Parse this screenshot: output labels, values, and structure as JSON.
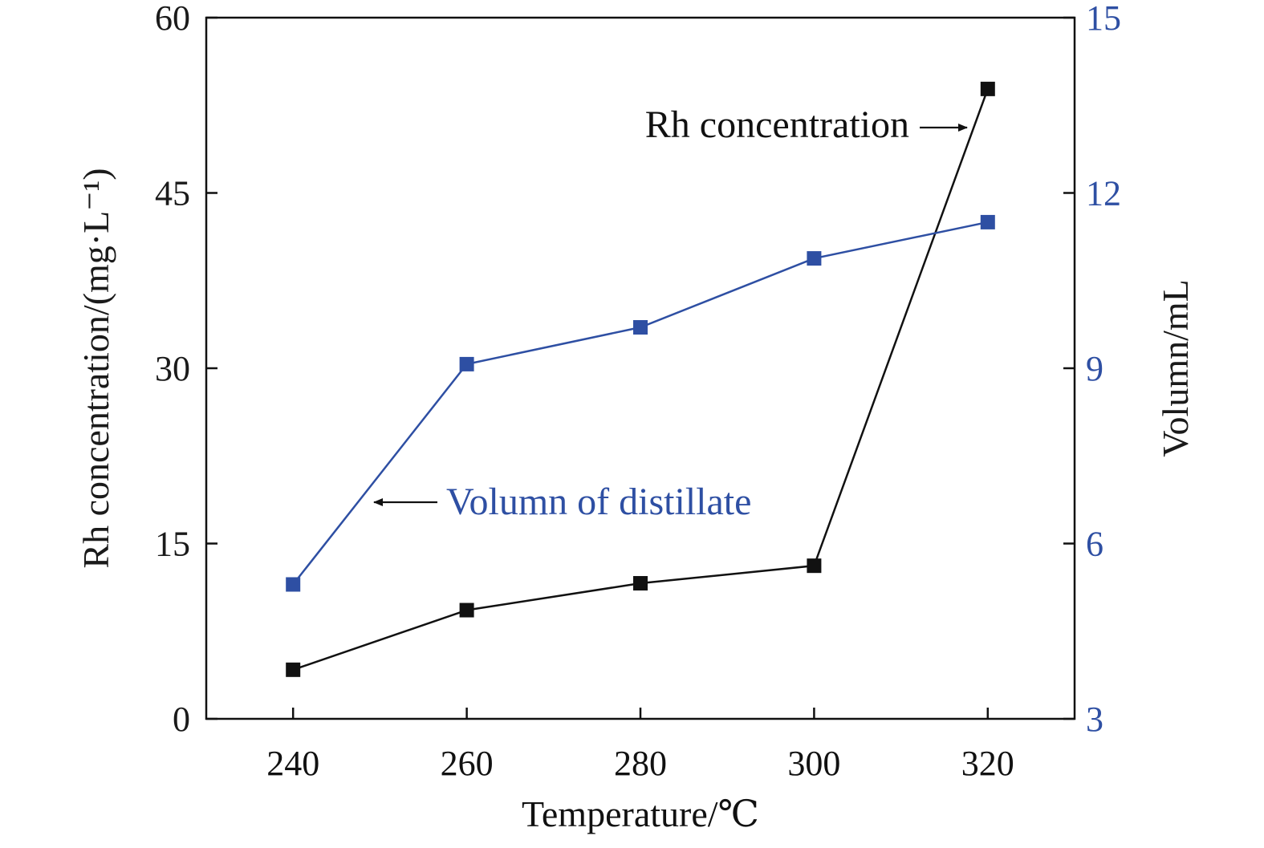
{
  "chart_data": {
    "type": "line",
    "x": [
      240,
      260,
      280,
      300,
      320
    ],
    "xlabel": "Temperature/℃",
    "xticks": [
      "240",
      "260",
      "280",
      "300",
      "320"
    ],
    "xlim": [
      230,
      330
    ],
    "y_left": {
      "label": "Rh concentration/(mg·L⁻¹)",
      "lim": [
        0,
        60
      ],
      "ticks": [
        "0",
        "15",
        "30",
        "45",
        "60"
      ],
      "color": "#1a1a1a"
    },
    "y_right": {
      "label": "Volumn/mL",
      "lim": [
        3,
        15
      ],
      "ticks": [
        "3",
        "6",
        "9",
        "12",
        "15"
      ],
      "color": "#2e4fa3"
    },
    "series": [
      {
        "name": "Rh concentration",
        "axis": "left",
        "color": "#111111",
        "marker": "square",
        "values": [
          4.2,
          9.3,
          11.6,
          13.1,
          53.9
        ]
      },
      {
        "name": "Volumn of distillate",
        "axis": "right",
        "color": "#2e4fa3",
        "marker": "square",
        "values": [
          5.3,
          9.07,
          9.7,
          10.88,
          11.5
        ]
      }
    ],
    "annotations": [
      {
        "text": "Rh concentration",
        "series": 0,
        "arrow": "right",
        "color": "#111111"
      },
      {
        "text": "Volumn of distillate",
        "series": 1,
        "arrow": "left",
        "color": "#2e4fa3"
      }
    ],
    "grid": false,
    "legend": "none"
  }
}
